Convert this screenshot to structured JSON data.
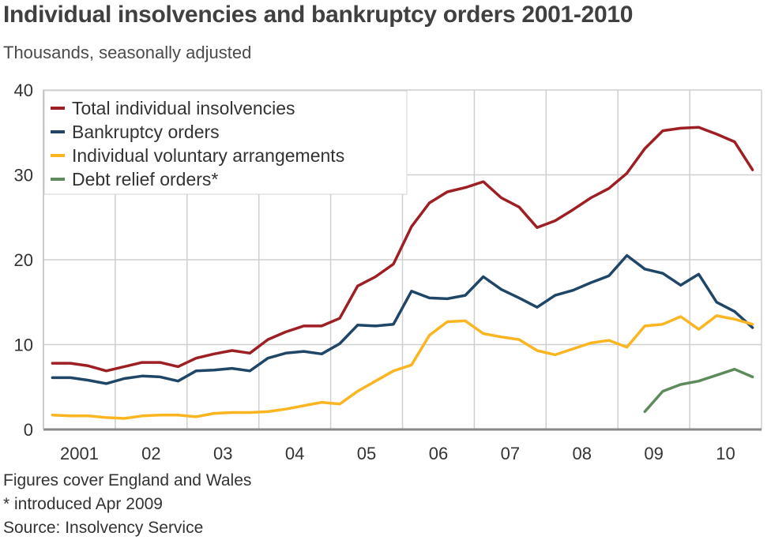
{
  "title": "Individual insolvencies and bankruptcy orders 2001-2010",
  "subtitle": "Thousands, seasonally adjusted",
  "notes": {
    "coverage": "Figures cover England and Wales",
    "footnote": "* introduced Apr 2009",
    "source": "Source: Insolvency Service"
  },
  "chart_data": {
    "type": "line",
    "x": [
      "2001 Q1",
      "2001 Q2",
      "2001 Q3",
      "2001 Q4",
      "2002 Q1",
      "2002 Q2",
      "2002 Q3",
      "2002 Q4",
      "2003 Q1",
      "2003 Q2",
      "2003 Q3",
      "2003 Q4",
      "2004 Q1",
      "2004 Q2",
      "2004 Q3",
      "2004 Q4",
      "2005 Q1",
      "2005 Q2",
      "2005 Q3",
      "2005 Q4",
      "2006 Q1",
      "2006 Q2",
      "2006 Q3",
      "2006 Q4",
      "2007 Q1",
      "2007 Q2",
      "2007 Q3",
      "2007 Q4",
      "2008 Q1",
      "2008 Q2",
      "2008 Q3",
      "2008 Q4",
      "2009 Q1",
      "2009 Q2",
      "2009 Q3",
      "2009 Q4",
      "2010 Q1",
      "2010 Q2",
      "2010 Q3",
      "2010 Q4"
    ],
    "x_tick_labels": [
      "2001",
      "02",
      "03",
      "04",
      "05",
      "06",
      "07",
      "08",
      "09",
      "10"
    ],
    "yticks": [
      0,
      10,
      20,
      30,
      40
    ],
    "ylim": [
      0,
      40
    ],
    "grid": true,
    "legend_position": "top-left",
    "series": [
      {
        "name": "Total individual insolvencies",
        "color": "#9e1f23",
        "values": [
          7.8,
          7.8,
          7.5,
          6.9,
          7.4,
          7.9,
          7.9,
          7.4,
          8.4,
          8.9,
          9.3,
          9.0,
          10.6,
          11.5,
          12.2,
          12.2,
          13.1,
          16.9,
          18.0,
          19.5,
          23.9,
          26.7,
          28.0,
          28.5,
          29.2,
          27.3,
          26.2,
          23.8,
          24.6,
          25.9,
          27.3,
          28.4,
          30.2,
          33.1,
          35.2,
          35.5,
          35.6,
          34.8,
          33.9,
          30.6
        ]
      },
      {
        "name": "Bankruptcy orders",
        "color": "#1f4567",
        "values": [
          6.1,
          6.1,
          5.8,
          5.4,
          6.0,
          6.3,
          6.2,
          5.7,
          6.9,
          7.0,
          7.2,
          6.9,
          8.4,
          9.0,
          9.2,
          8.9,
          10.1,
          12.3,
          12.2,
          12.4,
          16.3,
          15.5,
          15.4,
          15.8,
          18.0,
          16.5,
          15.5,
          14.4,
          15.8,
          16.4,
          17.3,
          18.1,
          20.5,
          18.9,
          18.4,
          17.0,
          18.3,
          15.0,
          13.9,
          12.0
        ]
      },
      {
        "name": "Individual voluntary arrangements",
        "color": "#fbb520",
        "values": [
          1.7,
          1.6,
          1.6,
          1.4,
          1.3,
          1.6,
          1.7,
          1.7,
          1.5,
          1.9,
          2.0,
          2.0,
          2.1,
          2.4,
          2.8,
          3.2,
          3.0,
          4.5,
          5.7,
          6.9,
          7.6,
          11.1,
          12.7,
          12.8,
          11.3,
          10.9,
          10.6,
          9.3,
          8.8,
          9.5,
          10.2,
          10.5,
          9.7,
          12.2,
          12.4,
          13.3,
          11.8,
          13.4,
          13.0,
          12.4
        ]
      },
      {
        "name": "Debt relief orders*",
        "color": "#5d8b5c",
        "values": [
          null,
          null,
          null,
          null,
          null,
          null,
          null,
          null,
          null,
          null,
          null,
          null,
          null,
          null,
          null,
          null,
          null,
          null,
          null,
          null,
          null,
          null,
          null,
          null,
          null,
          null,
          null,
          null,
          null,
          null,
          null,
          null,
          null,
          2.1,
          4.5,
          5.3,
          5.7,
          6.4,
          7.1,
          6.2
        ]
      }
    ]
  }
}
